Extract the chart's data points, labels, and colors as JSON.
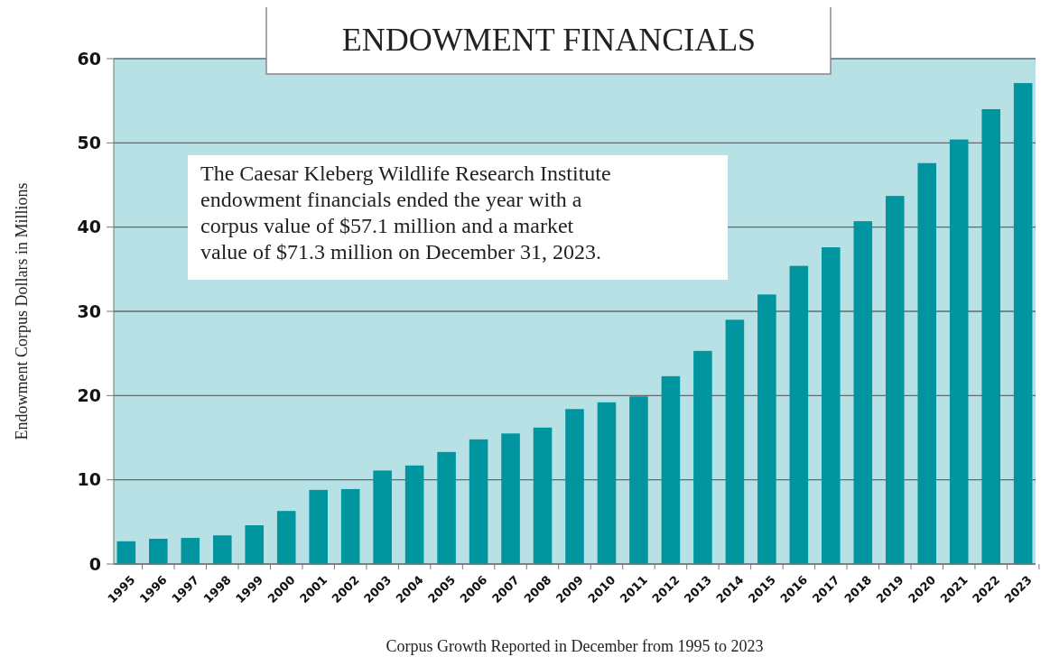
{
  "chart_data": {
    "type": "bar",
    "title": "ENDOWMENT FINANCIALS",
    "xlabel": "Corpus Growth Reported in December from 1995 to 2023",
    "ylabel": "Endowment Corpus Dollars in Millions",
    "annotations": [
      "The Caesar Kleberg Wildlife Research Institute endowment financials ended the year with a corpus value of $57.1 million and a market value of $71.3 million on December 31, 2023."
    ],
    "categories": [
      "1995",
      "1996",
      "1997",
      "1998",
      "1999",
      "2000",
      "2001",
      "2002",
      "2003",
      "2004",
      "2005",
      "2006",
      "2007",
      "2008",
      "2009",
      "2010",
      "2011",
      "2012",
      "2013",
      "2014",
      "2015",
      "2016",
      "2017",
      "2018",
      "2019",
      "2020",
      "2021",
      "2022",
      "2023"
    ],
    "values": [
      2.7,
      3.0,
      3.1,
      3.4,
      4.6,
      6.3,
      8.8,
      8.9,
      11.1,
      11.7,
      13.3,
      14.8,
      15.5,
      16.2,
      18.4,
      19.2,
      19.9,
      22.3,
      25.3,
      29.0,
      32.0,
      35.4,
      37.6,
      40.7,
      43.7,
      47.6,
      50.4,
      54.0,
      57.1
    ],
    "color": "#00959f",
    "ylim": [
      0,
      60
    ],
    "yticks": [
      0,
      10,
      20,
      30,
      40,
      50,
      60
    ],
    "grid": "y"
  }
}
